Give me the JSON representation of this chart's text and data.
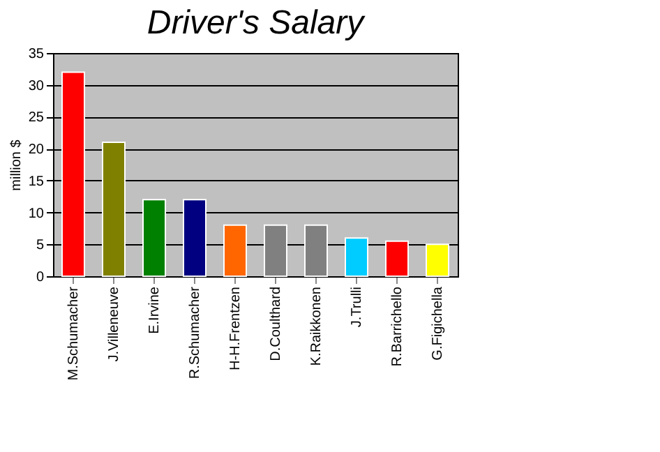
{
  "chart_data": {
    "type": "bar",
    "title": "Driver's Salary",
    "ylabel": "million $",
    "categories": [
      "M.Schumacher",
      "J.Villeneuve",
      "E.Irvine",
      "R.Schumacher",
      "H-H.Frentzen",
      "D.Coulthard",
      "K.Raikkonen",
      "J.Trulli",
      "R.Barrichello",
      "G.Figichella"
    ],
    "values": [
      32,
      21,
      12,
      12,
      8,
      8,
      8,
      6,
      5.5,
      5
    ],
    "colors": [
      "#ff0000",
      "#808000",
      "#008000",
      "#000080",
      "#ff6600",
      "#808080",
      "#808080",
      "#00ccff",
      "#ff0000",
      "#ffff00"
    ],
    "ylim": [
      0,
      35
    ],
    "yticks": [
      0,
      5,
      10,
      15,
      20,
      25,
      30,
      35
    ],
    "grid": "y"
  }
}
